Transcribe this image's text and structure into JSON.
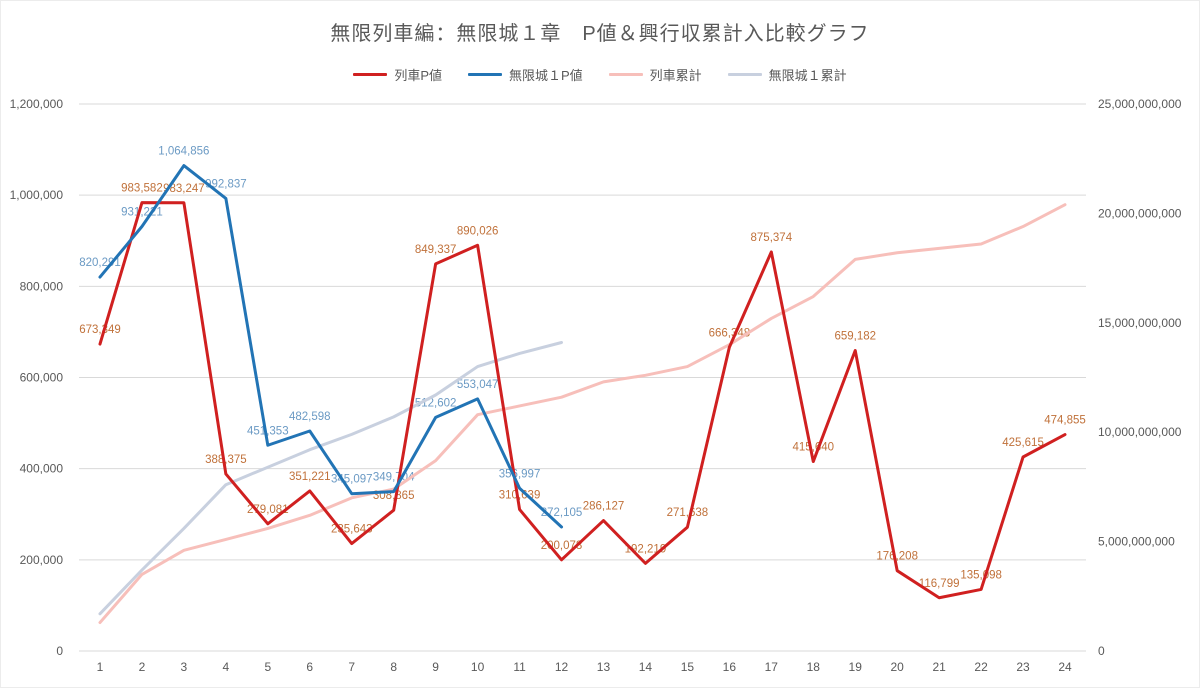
{
  "title": "無限列車編：無限城１章　P値＆興行収累計入比較グラフ",
  "chart_data": {
    "type": "line",
    "title": "無限列車編：無限城１章　P値＆興行収累計入比較グラフ",
    "x_labels": [
      "1",
      "2",
      "3",
      "4",
      "5",
      "6",
      "7",
      "8",
      "9",
      "10",
      "11",
      "12",
      "13",
      "14",
      "15",
      "16",
      "17",
      "18",
      "19",
      "20",
      "21",
      "22",
      "23",
      "24"
    ],
    "left_axis": {
      "min": 0,
      "max": 1200000,
      "step": 200000
    },
    "right_axis": {
      "min": 0,
      "max": 25000000000,
      "step": 5000000000
    },
    "grid": true,
    "legend_position": "top",
    "series": [
      {
        "name": "列車P値",
        "axis": "left",
        "color": "#d02020",
        "label_color": "#c0713a",
        "show_labels": true,
        "values": [
          673349,
          983582,
          983247,
          388375,
          279081,
          351221,
          235643,
          308865,
          849337,
          890026,
          310639,
          200078,
          286127,
          192219,
          271638,
          666348,
          875374,
          415640,
          659182,
          176208,
          116799,
          135098,
          425615,
          474855
        ]
      },
      {
        "name": "無限城１P値",
        "axis": "left",
        "color": "#2274b5",
        "label_color": "#6b9ac4",
        "show_labels": true,
        "values": [
          820291,
          931221,
          1064856,
          992837,
          451353,
          482598,
          345097,
          349704,
          512602,
          553047,
          356997,
          272105
        ]
      },
      {
        "name": "列車累計",
        "axis": "right",
        "color": "#f7bfba",
        "label_color": "#c0713a",
        "show_labels": false,
        "values": [
          1300000000,
          3500000000,
          4600000000,
          5100000000,
          5600000000,
          6200000000,
          7000000000,
          7400000000,
          8700000000,
          10800000000,
          11200000000,
          11600000000,
          12300000000,
          12600000000,
          13000000000,
          14000000000,
          15200000000,
          16200000000,
          17900000000,
          18200000000,
          18400000000,
          18600000000,
          19400000000,
          20400000000
        ]
      },
      {
        "name": "無限城１累計",
        "axis": "right",
        "color": "#c8d0df",
        "label_color": "#6b9ac4",
        "show_labels": false,
        "values": [
          1700000000,
          3700000000,
          5600000000,
          7600000000,
          8400000000,
          9200000000,
          9900000000,
          10700000000,
          11700000000,
          13000000000,
          13600000000,
          14100000000
        ]
      }
    ]
  },
  "style": {
    "grid_color": "#d9d9d9",
    "axis_text_color": "#595959"
  }
}
